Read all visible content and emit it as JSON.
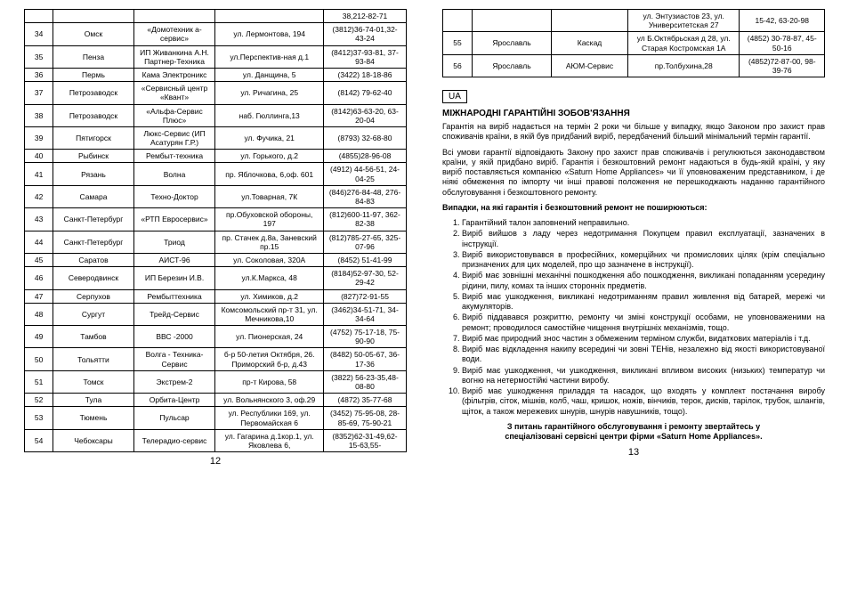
{
  "leftTable": [
    [
      "",
      "",
      "",
      "",
      "38,212-82-71"
    ],
    [
      "34",
      "Омск",
      "«Домотехник а-сервис»",
      "ул. Лермонтова, 194",
      "(3812)36-74-01,32-43-24"
    ],
    [
      "35",
      "Пенза",
      "ИП Живанкина А.Н. Партнер-Техника",
      "ул.Перспектив-ная д.1",
      "(8412)37-93-81, 37-93-84"
    ],
    [
      "36",
      "Пермь",
      "Кама Электроникс",
      "ул. Данщина, 5",
      "(3422) 18-18-86"
    ],
    [
      "37",
      "Петрозаводск",
      "«Сервисный центр «Квант»",
      "ул. Ричагина, 25",
      "(8142) 79-62-40"
    ],
    [
      "38",
      "Петрозаводск",
      "«Альфа-Сервис Плюс»",
      "наб. Гюллинга,13",
      "(8142)63-63-20, 63-20-04"
    ],
    [
      "39",
      "Пятигорск",
      "Люкс-Сервис (ИП Асатурян Г.Р.)",
      "ул. Фучика, 21",
      "(8793) 32-68-80"
    ],
    [
      "40",
      "Рыбинск",
      "Рембыт-техника",
      "ул. Горького, д.2",
      "(4855)28-96-08"
    ],
    [
      "41",
      "Рязань",
      "Волна",
      "пр. Яблочкова, 6,оф. 601",
      "(4912) 44-56-51, 24-04-25"
    ],
    [
      "42",
      "Самара",
      "Техно-Доктор",
      "ул.Товарная, 7К",
      "(846)276-84-48, 276-84-83"
    ],
    [
      "43",
      "Санкт-Петербург",
      "«РТП Евросервис»",
      "пр.Обуховской обороны, 197",
      "(812)600-11-97, 362-82-38"
    ],
    [
      "44",
      "Санкт-Петербург",
      "Триод",
      "пр. Стачек д.8а, Заневский пр.15",
      "(812)785-27-65, 325-07-96"
    ],
    [
      "45",
      "Саратов",
      "АИСТ-96",
      "ул. Соколовая, 320А",
      "(8452) 51-41-99"
    ],
    [
      "46",
      "Северодвинск",
      "ИП Березин И.В.",
      "ул.К.Маркса, 48",
      "(8184)52-97-30, 52-29-42"
    ],
    [
      "47",
      "Серпухов",
      "Рембыттехника",
      "ул. Химиков, д.2",
      "(827)72-91-55"
    ],
    [
      "48",
      "Сургут",
      "Трейд-Сервис",
      "Комсомольский пр-т 31, ул. Мечникова,10",
      "(3462)34-51-71, 34-34-64"
    ],
    [
      "49",
      "Тамбов",
      "ВВС -2000",
      "ул. Пионерская, 24",
      "(4752) 75-17-18, 75-90-90"
    ],
    [
      "50",
      "Тольятти",
      "Волга - Техника-Сервис",
      "б-р 50-летия Октября, 26. Приморский б-р, д.43",
      "(8482) 50-05-67, 36-17-36"
    ],
    [
      "51",
      "Томск",
      "Экстрем-2",
      "пр-т Кирова, 58",
      "(3822) 56-23-35,48-08-80"
    ],
    [
      "52",
      "Тула",
      "Орбита-Центр",
      "ул. Вольнянского 3, оф.29",
      "(4872) 35-77-68"
    ],
    [
      "53",
      "Тюмень",
      "Пульсар",
      "ул. Республики 169, ул. Первомайская 6",
      "(3452) 75-95-08, 28-85-69, 75-90-21"
    ],
    [
      "54",
      "Чебоксары",
      "Телерадио-сервис",
      "ул. Гагарина д.1кор.1, ул. Яковлева 6,",
      "(8352)62-31-49,62-15-63,55-"
    ]
  ],
  "rightTable": [
    [
      "",
      "",
      "",
      "ул. Энтузиастов 23, ул. Университетская 27",
      "15-42, 63-20-98"
    ],
    [
      "55",
      "Ярославль",
      "Каскад",
      "ул Б.Октябрьская д 28, ул. Старая Костромская 1А",
      "(4852) 30-78-87, 45-50-16"
    ],
    [
      "56",
      "Ярославль",
      "АЮМ-Сервис",
      "пр.Толбухина,28",
      "(4852)72-87-00, 98-39-76"
    ]
  ],
  "leftPageNum": "12",
  "rightPageNum": "13",
  "langCode": "UA",
  "heading": "МІЖНАРОДНІ ГАРАНТІЙНІ ЗОБОВ'ЯЗАННЯ",
  "para1": "Гарантія на виріб надається на термін 2 роки чи більше у випадку, якщо Законом про захист прав споживачів країни, в якій був придбаний виріб, передбачений більший мінімальний термін гарантії.",
  "para2": "Всі умови гарантії відповідають Закону про захист прав споживачів і регулюються законодавством країни, у якій придбано виріб. Гарантія і безкоштовний ремонт надаються в будь-якій країні, у яку виріб поставляється компанією «Saturn Home Appliances» чи її уповноваженим представником, і де ніякі обмеження по імпорту чи інші правові положення не перешкоджають наданню гарантійного обслуговування і безкоштовного ремонту.",
  "subheading": "Випадки, на які гарантія і безкоштовний ремонт не поширюються:",
  "items": [
    "Гарантійний талон заповнений неправильно.",
    "Виріб вийшов з ладу через недотримання Покупцем правил експлуатації, зазначених в інструкції.",
    "Виріб використовувався в професійних, комерційних чи промислових цілях (крім спеціально призначених для цих моделей, про що зазначене в інструкції).",
    "Виріб має зовнішні механічні пошкодження або пошкодження, викликані попаданням усередину рідини, пилу, комах та інших сторонніх предметів.",
    "Виріб має ушкодження, викликані недотриманням правил живлення від батарей, мережі чи акумуляторів.",
    "Виріб піддавався розкриттю, ремонту чи зміні конструкції особами, не уповноваженими на ремонт; проводилося самостійне чищення внутрішніх механізмів, тощо.",
    "Виріб має природний знос частин з обмеженим терміном служби, видаткових матеріалів і т.д.",
    "Виріб має відкладення накипу всередині чи зовні ТЕНів, незалежно від якості використовуваної води.",
    "Виріб має  ушкодження, чи ушкодження, викликані впливом високих (низьких) температур чи вогню на нетермостійкі частини виробу.",
    " Виріб має  ушкодження  приладдя та насадок, що входять у комплект постачання виробу (фільтрів, сіток, мішків, колб, чаш, кришок, ножів, вінчиків, терок, дисків, тарілок, трубок, шлангів, щіток, а також мережевих шнурів, шнурів навушників, тощо)."
  ],
  "footer1": "З питань гарантійного обслуговування і ремонту звертайтесь у",
  "footer2": "спеціалізовані сервісні центри фірми «Saturn Home Appliances»."
}
